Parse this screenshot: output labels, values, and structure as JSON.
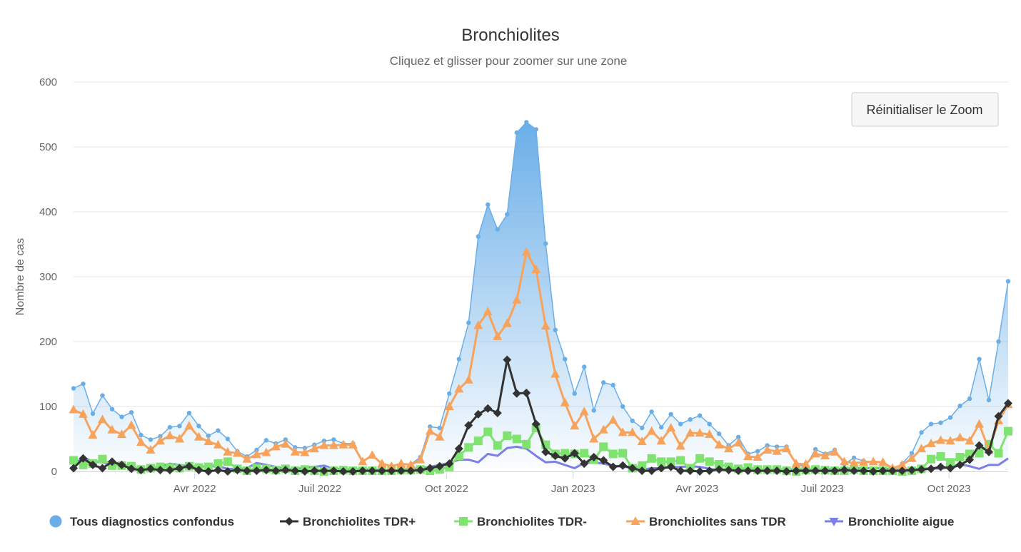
{
  "chart_data": {
    "type": "line",
    "title": "Bronchiolites",
    "subtitle": "Cliquez et glisser pour zoomer sur une zone",
    "ylabel": "Nombre de cas",
    "xlabel": "",
    "ylim": [
      0,
      600
    ],
    "yticks": [
      "0",
      "100",
      "200",
      "300",
      "400",
      "500",
      "600"
    ],
    "xticks": [
      {
        "date": "2022-04-01",
        "label": "Avr 2022"
      },
      {
        "date": "2022-07-01",
        "label": "Juil 2022"
      },
      {
        "date": "2022-10-01",
        "label": "Oct 2022"
      },
      {
        "date": "2023-01-01",
        "label": "Jan 2023"
      },
      {
        "date": "2023-04-01",
        "label": "Avr 2023"
      },
      {
        "date": "2023-07-01",
        "label": "Juil 2023"
      },
      {
        "date": "2023-10-01",
        "label": "Oct 2023"
      }
    ],
    "grid": true,
    "legend_position": "bottom",
    "x": [
      "2022-01-03",
      "2022-01-10",
      "2022-01-17",
      "2022-01-24",
      "2022-01-31",
      "2022-02-07",
      "2022-02-14",
      "2022-02-21",
      "2022-02-28",
      "2022-03-07",
      "2022-03-14",
      "2022-03-21",
      "2022-03-28",
      "2022-04-04",
      "2022-04-11",
      "2022-04-18",
      "2022-04-25",
      "2022-05-02",
      "2022-05-09",
      "2022-05-16",
      "2022-05-23",
      "2022-05-30",
      "2022-06-06",
      "2022-06-13",
      "2022-06-20",
      "2022-06-27",
      "2022-07-04",
      "2022-07-11",
      "2022-07-18",
      "2022-07-25",
      "2022-08-01",
      "2022-08-08",
      "2022-08-15",
      "2022-08-22",
      "2022-08-29",
      "2022-09-05",
      "2022-09-12",
      "2022-09-19",
      "2022-09-26",
      "2022-10-03",
      "2022-10-10",
      "2022-10-17",
      "2022-10-24",
      "2022-10-31",
      "2022-11-07",
      "2022-11-14",
      "2022-11-21",
      "2022-11-28",
      "2022-12-05",
      "2022-12-12",
      "2022-12-19",
      "2022-12-26",
      "2023-01-02",
      "2023-01-09",
      "2023-01-16",
      "2023-01-23",
      "2023-01-30",
      "2023-02-06",
      "2023-02-13",
      "2023-02-20",
      "2023-02-27",
      "2023-03-06",
      "2023-03-13",
      "2023-03-20",
      "2023-03-27",
      "2023-04-03",
      "2023-04-10",
      "2023-04-17",
      "2023-04-24",
      "2023-05-01",
      "2023-05-08",
      "2023-05-15",
      "2023-05-22",
      "2023-05-29",
      "2023-06-05",
      "2023-06-12",
      "2023-06-19",
      "2023-06-26",
      "2023-07-03",
      "2023-07-10",
      "2023-07-17",
      "2023-07-24",
      "2023-07-31",
      "2023-08-07",
      "2023-08-14",
      "2023-08-21",
      "2023-08-28",
      "2023-09-04",
      "2023-09-11",
      "2023-09-18",
      "2023-09-25",
      "2023-10-02",
      "2023-10-09",
      "2023-10-16",
      "2023-10-23",
      "2023-10-30",
      "2023-11-06",
      "2023-11-13"
    ],
    "series": [
      {
        "name": "Tous diagnostics confondus",
        "color": "#6aaee8",
        "marker": "circle",
        "area": true,
        "values": [
          128,
          135,
          89,
          117,
          96,
          84,
          91,
          56,
          49,
          54,
          68,
          70,
          90,
          70,
          55,
          63,
          50,
          31,
          23,
          33,
          48,
          43,
          49,
          37,
          36,
          41,
          47,
          49,
          43,
          43,
          16,
          25,
          13,
          8,
          12,
          11,
          22,
          69,
          67,
          120,
          173,
          229,
          362,
          411,
          373,
          396,
          522,
          538,
          527,
          351,
          218,
          173,
          120,
          161,
          94,
          137,
          133,
          100,
          78,
          67,
          92,
          68,
          88,
          73,
          80,
          86,
          73,
          58,
          40,
          53,
          27,
          31,
          40,
          38,
          38,
          10,
          8,
          34,
          27,
          33,
          11,
          21,
          16,
          15,
          13,
          3,
          12,
          28,
          60,
          73,
          75,
          83,
          101,
          112,
          173,
          110,
          200,
          293
        ]
      },
      {
        "name": "Bronchiolites TDR+",
        "color": "#333333",
        "marker": "diamond",
        "values": [
          5,
          20,
          10,
          5,
          15,
          10,
          4,
          2,
          4,
          2,
          2,
          5,
          8,
          2,
          0,
          2,
          0,
          2,
          1,
          1,
          2,
          1,
          2,
          1,
          0,
          1,
          1,
          1,
          0,
          0,
          1,
          1,
          1,
          1,
          1,
          1,
          2,
          5,
          8,
          12,
          35,
          71,
          88,
          97,
          90,
          172,
          120,
          121,
          73,
          30,
          24,
          20,
          28,
          12,
          22,
          17,
          7,
          9,
          5,
          1,
          1,
          5,
          7,
          1,
          1,
          0,
          1,
          3,
          2,
          1,
          1,
          1,
          1,
          1,
          0,
          1,
          1,
          1,
          1,
          1,
          2,
          1,
          1,
          0,
          1,
          1,
          1,
          2,
          3,
          4,
          7,
          5,
          10,
          18,
          40,
          30,
          85,
          105
        ]
      },
      {
        "name": "Bronchiolites TDR-",
        "color": "#7ee36f",
        "marker": "square",
        "values": [
          17,
          10,
          12,
          19,
          9,
          9,
          8,
          3,
          5,
          7,
          6,
          5,
          8,
          6,
          7,
          12,
          15,
          4,
          1,
          5,
          4,
          2,
          4,
          1,
          3,
          1,
          0,
          1,
          2,
          1,
          1,
          1,
          1,
          1,
          2,
          2,
          3,
          1,
          3,
          7,
          24,
          37,
          47,
          61,
          40,
          55,
          50,
          42,
          67,
          41,
          27,
          28,
          27,
          28,
          18,
          38,
          27,
          28,
          5,
          9,
          20,
          15,
          15,
          17,
          5,
          20,
          15,
          11,
          7,
          4,
          6,
          3,
          3,
          3,
          1,
          0,
          2,
          3,
          2,
          1,
          1,
          3,
          1,
          1,
          1,
          1,
          0,
          1,
          4,
          19,
          23,
          14,
          22,
          27,
          28,
          42,
          28,
          62
        ]
      },
      {
        "name": "Bronchiolites sans TDR",
        "color": "#f7a35c",
        "marker": "triangle",
        "values": [
          95,
          88,
          56,
          80,
          64,
          57,
          71,
          45,
          33,
          47,
          55,
          50,
          70,
          53,
          46,
          41,
          30,
          28,
          19,
          26,
          29,
          38,
          42,
          30,
          29,
          35,
          40,
          40,
          41,
          41,
          15,
          25,
          12,
          8,
          12,
          10,
          18,
          62,
          53,
          100,
          127,
          141,
          225,
          246,
          208,
          228,
          264,
          338,
          311,
          224,
          150,
          106,
          70,
          92,
          50,
          64,
          79,
          60,
          60,
          46,
          62,
          47,
          67,
          39,
          59,
          59,
          57,
          41,
          35,
          44,
          23,
          22,
          33,
          31,
          35,
          12,
          11,
          27,
          24,
          30,
          15,
          13,
          14,
          15,
          14,
          5,
          10,
          20,
          35,
          43,
          48,
          47,
          52,
          47,
          73,
          33,
          78,
          103
        ]
      },
      {
        "name": "Bronchiolite aigue",
        "color": "#7b7fe6",
        "marker": "triangle-down",
        "values": [
          10,
          22,
          15,
          14,
          10,
          9,
          9,
          2,
          5,
          8,
          12,
          10,
          8,
          7,
          8,
          8,
          4,
          4,
          5,
          13,
          10,
          7,
          4,
          3,
          6,
          7,
          9,
          4,
          3,
          3,
          3,
          3,
          2,
          1,
          2,
          4,
          5,
          7,
          10,
          13,
          18,
          18,
          14,
          27,
          24,
          36,
          38,
          35,
          24,
          14,
          15,
          10,
          5,
          13,
          14,
          12,
          9,
          7,
          6,
          3,
          5,
          5,
          6,
          7,
          8,
          7,
          4,
          2,
          3,
          3,
          4,
          3,
          3,
          3,
          3,
          3,
          3,
          3,
          3,
          4,
          4,
          5,
          5,
          5,
          5,
          3,
          3,
          3,
          4,
          5,
          4,
          7,
          11,
          8,
          4,
          10,
          10,
          20
        ]
      }
    ]
  },
  "reset_zoom_button": {
    "label": "Réinitialiser le Zoom"
  }
}
